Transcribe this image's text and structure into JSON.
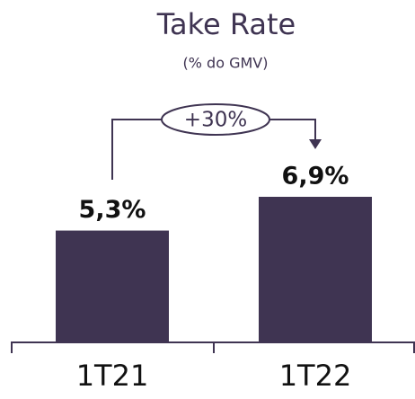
{
  "chart_data": {
    "type": "bar",
    "title": "Take Rate",
    "subtitle": "(% do GMV)",
    "categories": [
      "1T21",
      "1T22"
    ],
    "values": [
      5.3,
      6.9
    ],
    "value_labels": [
      "5,3%",
      "6,9%"
    ],
    "color": "#3f3452",
    "annotation": "+30%"
  }
}
